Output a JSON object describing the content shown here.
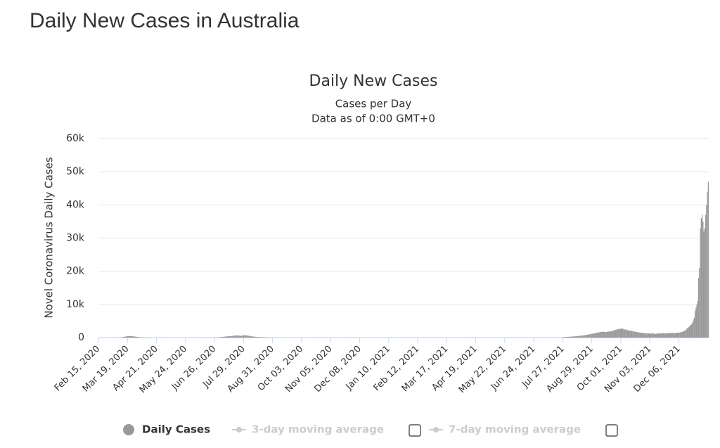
{
  "page_title": "Daily New Cases in Australia",
  "chart_data": {
    "type": "bar",
    "title": "Daily New Cases",
    "subtitle": [
      "Cases per Day",
      "Data as of 0:00 GMT+0"
    ],
    "y_label": "Novel Coronavirus Daily Cases",
    "ylim": [
      0,
      60000
    ],
    "yticks": [
      0,
      {
        "value": 10000,
        "label": "10k"
      },
      {
        "value": 20000,
        "label": "20k"
      },
      {
        "value": 30000,
        "label": "30k"
      },
      {
        "value": 40000,
        "label": "40k"
      },
      {
        "value": 50000,
        "label": "50k"
      },
      {
        "value": 60000,
        "label": "60k"
      }
    ],
    "grid": true,
    "categories": [
      "Feb 15, 2020",
      null,
      null,
      null,
      null,
      null,
      null,
      null,
      null,
      null,
      null,
      null,
      null,
      null,
      null,
      null,
      null,
      null,
      null,
      null,
      null,
      null,
      null,
      null,
      null,
      null,
      null,
      null,
      null,
      null,
      null,
      null,
      null,
      "Mar 19, 2020",
      null,
      null,
      null,
      null,
      null,
      null,
      null,
      null,
      null,
      null,
      null,
      null,
      null,
      null,
      null,
      null,
      null,
      null,
      null,
      null,
      null,
      null,
      null,
      null,
      null,
      null,
      null,
      null,
      null,
      null,
      null,
      null,
      "Apr 21, 2020",
      null,
      null,
      null,
      null,
      null,
      null,
      null,
      null,
      null,
      null,
      null,
      null,
      null,
      null,
      null,
      null,
      null,
      null,
      null,
      null,
      null,
      null,
      null,
      null,
      null,
      null,
      null,
      null,
      null,
      null,
      null,
      null,
      "May 24, 2020",
      null,
      null,
      null,
      null,
      null,
      null,
      null,
      null,
      null,
      null,
      null,
      null,
      null,
      null,
      null,
      null,
      null,
      null,
      null,
      null,
      null,
      null,
      null,
      null,
      null,
      null,
      null,
      null,
      null,
      null,
      null,
      null,
      "Jun 26, 2020",
      null,
      null,
      null,
      null,
      null,
      null,
      null,
      null,
      null,
      null,
      null,
      null,
      null,
      null,
      null,
      null,
      null,
      null,
      null,
      null,
      null,
      null,
      null,
      null,
      null,
      null,
      null,
      null,
      null,
      null,
      null,
      null,
      "Jul 29, 2020",
      null,
      null,
      null,
      null,
      null,
      null,
      null,
      null,
      null,
      null,
      null,
      null,
      null,
      null,
      null,
      null,
      null,
      null,
      null,
      null,
      null,
      null,
      null,
      null,
      null,
      null,
      null,
      null,
      null,
      null,
      null,
      null,
      "Aug 31, 2020",
      null,
      null,
      null,
      null,
      null,
      null,
      null,
      null,
      null,
      null,
      null,
      null,
      null,
      null,
      null,
      null,
      null,
      null,
      null,
      null,
      null,
      null,
      null,
      null,
      null,
      null,
      null,
      null,
      null,
      null,
      null,
      null,
      "Oct 03, 2020",
      null,
      null,
      null,
      null,
      null,
      null,
      null,
      null,
      null,
      null,
      null,
      null,
      null,
      null,
      null,
      null,
      null,
      null,
      null,
      null,
      null,
      null,
      null,
      null,
      null,
      null,
      null,
      null,
      null,
      null,
      null,
      null,
      "Nov 05, 2020",
      null,
      null,
      null,
      null,
      null,
      null,
      null,
      null,
      null,
      null,
      null,
      null,
      null,
      null,
      null,
      null,
      null,
      null,
      null,
      null,
      null,
      null,
      null,
      null,
      null,
      null,
      null,
      null,
      null,
      null,
      null,
      null,
      "Dec 08, 2020",
      null,
      null,
      null,
      null,
      null,
      null,
      null,
      null,
      null,
      null,
      null,
      null,
      null,
      null,
      null,
      null,
      null,
      null,
      null,
      null,
      null,
      null,
      null,
      null,
      null,
      null,
      null,
      null,
      null,
      null,
      null,
      null,
      "Jan 10, 2021",
      null,
      null,
      null,
      null,
      null,
      null,
      null,
      null,
      null,
      null,
      null,
      null,
      null,
      null,
      null,
      null,
      null,
      null,
      null,
      null,
      null,
      null,
      null,
      null,
      null,
      null,
      null,
      null,
      null,
      null,
      null,
      null,
      "Feb 12, 2021",
      null,
      null,
      null,
      null,
      null,
      null,
      null,
      null,
      null,
      null,
      null,
      null,
      null,
      null,
      null,
      null,
      null,
      null,
      null,
      null,
      null,
      null,
      null,
      null,
      null,
      null,
      null,
      null,
      null,
      null,
      null,
      null,
      "Mar 17, 2021",
      null,
      null,
      null,
      null,
      null,
      null,
      null,
      null,
      null,
      null,
      null,
      null,
      null,
      null,
      null,
      null,
      null,
      null,
      null,
      null,
      null,
      null,
      null,
      null,
      null,
      null,
      null,
      null,
      null,
      null,
      null,
      null,
      "Apr 19, 2021",
      null,
      null,
      null,
      null,
      null,
      null,
      null,
      null,
      null,
      null,
      null,
      null,
      null,
      null,
      null,
      null,
      null,
      null,
      null,
      null,
      null,
      null,
      null,
      null,
      null,
      null,
      null,
      null,
      null,
      null,
      null,
      null,
      "May 22, 2021",
      null,
      null,
      null,
      null,
      null,
      null,
      null,
      null,
      null,
      null,
      null,
      null,
      null,
      null,
      null,
      null,
      null,
      null,
      null,
      null,
      null,
      null,
      null,
      null,
      null,
      null,
      null,
      null,
      null,
      null,
      null,
      null,
      "Jun 24, 2021",
      null,
      null,
      null,
      null,
      null,
      null,
      null,
      null,
      null,
      null,
      null,
      null,
      null,
      null,
      null,
      null,
      null,
      null,
      null,
      null,
      null,
      null,
      null,
      null,
      null,
      null,
      null,
      null,
      null,
      null,
      null,
      null,
      "Jul 27, 2021",
      null,
      null,
      null,
      null,
      null,
      null,
      null,
      null,
      null,
      null,
      null,
      null,
      null,
      null,
      null,
      null,
      null,
      null,
      null,
      null,
      null,
      null,
      null,
      null,
      null,
      null,
      null,
      null,
      null,
      null,
      null,
      null,
      "Aug 29, 2021",
      null,
      null,
      null,
      null,
      null,
      null,
      null,
      null,
      null,
      null,
      null,
      null,
      null,
      null,
      null,
      null,
      null,
      null,
      null,
      null,
      null,
      null,
      null,
      null,
      null,
      null,
      null,
      null,
      null,
      null,
      null,
      null,
      "Oct 01, 2021",
      null,
      null,
      null,
      null,
      null,
      null,
      null,
      null,
      null,
      null,
      null,
      null,
      null,
      null,
      null,
      null,
      null,
      null,
      null,
      null,
      null,
      null,
      null,
      null,
      null,
      null,
      null,
      null,
      null,
      null,
      null,
      null,
      "Nov 03, 2021",
      null,
      null,
      null,
      null,
      null,
      null,
      null,
      null,
      null,
      null,
      null,
      null,
      null,
      null,
      null,
      null,
      null,
      null,
      null,
      null,
      null,
      null,
      null,
      null,
      null,
      null,
      null,
      null,
      null,
      null,
      null,
      null,
      "Dec 06, 2021",
      null,
      null,
      null,
      null,
      null,
      null,
      null,
      null,
      null,
      null,
      null,
      null,
      null,
      null,
      null,
      null,
      null,
      null,
      null,
      null,
      null,
      null,
      null,
      null,
      null,
      null,
      null,
      null,
      null,
      null,
      null,
      null,
      null
    ],
    "series": [
      {
        "name": "Daily Cases",
        "color": "#999999",
        "values": [
          0,
          0,
          0,
          0,
          0,
          0,
          0,
          0,
          0,
          0,
          0,
          0,
          0,
          0,
          0,
          0,
          0,
          0,
          2,
          5,
          10,
          20,
          25,
          40,
          50,
          80,
          100,
          130,
          180,
          250,
          300,
          350,
          400,
          400,
          450,
          480,
          500,
          460,
          420,
          380,
          350,
          300,
          280,
          250,
          220,
          200,
          150,
          120,
          100,
          90,
          80,
          60,
          50,
          40,
          30,
          25,
          20,
          18,
          15,
          12,
          10,
          10,
          8,
          6,
          5,
          5,
          5,
          8,
          10,
          12,
          15,
          10,
          8,
          6,
          5,
          14,
          20,
          18,
          15,
          12,
          10,
          8,
          6,
          5,
          8,
          10,
          12,
          15,
          10,
          8,
          6,
          5,
          8,
          10,
          12,
          10,
          8,
          6,
          5,
          10,
          8,
          6,
          12,
          15,
          10,
          8,
          6,
          5,
          8,
          10,
          12,
          15,
          18,
          20,
          15,
          12,
          10,
          15,
          20,
          25,
          20,
          18,
          25,
          30,
          20,
          25,
          30,
          35,
          30,
          40,
          35,
          30,
          40,
          50,
          60,
          80,
          100,
          120,
          150,
          180,
          200,
          250,
          270,
          300,
          320,
          350,
          400,
          380,
          420,
          450,
          500,
          480,
          520,
          550,
          600,
          580,
          620,
          650,
          700,
          600,
          550,
          500,
          550,
          600,
          650,
          720,
          700,
          680,
          650,
          600,
          550,
          500,
          450,
          420,
          380,
          350,
          300,
          280,
          250,
          230,
          200,
          180,
          160,
          150,
          140,
          130,
          120,
          110,
          100,
          90,
          80,
          70,
          60,
          50,
          45,
          40,
          35,
          30,
          30,
          25,
          20,
          20,
          18,
          15,
          12,
          10,
          10,
          8,
          8,
          6,
          6,
          5,
          5,
          5,
          4,
          4,
          3,
          3,
          3,
          2,
          2,
          2,
          2,
          2,
          2,
          2,
          2,
          2,
          2,
          2,
          2,
          10,
          12,
          8,
          15,
          9,
          11,
          14,
          10,
          7,
          13,
          12,
          9,
          10,
          11,
          8,
          16,
          10,
          12,
          9,
          14,
          11,
          10,
          8,
          13,
          12,
          9,
          10,
          15,
          11,
          10,
          12,
          8,
          9,
          10,
          12,
          8,
          15,
          9,
          11,
          14,
          10,
          7,
          13,
          12,
          9,
          10,
          11,
          8,
          16,
          10,
          12,
          9,
          14,
          11,
          10,
          8,
          13,
          12,
          9,
          10,
          15,
          11,
          10,
          12,
          8,
          9,
          10,
          12,
          8,
          15,
          9,
          11,
          14,
          10,
          7,
          13,
          12,
          9,
          10,
          11,
          8,
          16,
          10,
          12,
          9,
          14,
          11,
          10,
          8,
          13,
          12,
          9,
          10,
          15,
          11,
          10,
          12,
          8,
          9,
          10,
          12,
          8,
          15,
          9,
          11,
          14,
          10,
          7,
          13,
          12,
          9,
          10,
          11,
          8,
          16,
          10,
          12,
          9,
          14,
          11,
          10,
          8,
          13,
          12,
          9,
          10,
          15,
          11,
          10,
          12,
          8,
          9,
          10,
          12,
          8,
          15,
          9,
          11,
          14,
          10,
          7,
          13,
          12,
          9,
          10,
          11,
          8,
          16,
          10,
          12,
          9,
          14,
          11,
          10,
          8,
          13,
          12,
          9,
          10,
          15,
          11,
          10,
          12,
          8,
          9,
          10,
          12,
          8,
          15,
          9,
          11,
          14,
          10,
          7,
          13,
          12,
          9,
          10,
          11,
          8,
          16,
          10,
          12,
          9,
          14,
          11,
          10,
          8,
          13,
          12,
          9,
          10,
          15,
          11,
          10,
          12,
          8,
          9,
          10,
          12,
          8,
          15,
          9,
          11,
          14,
          10,
          7,
          13,
          12,
          9,
          10,
          11,
          8,
          16,
          10,
          12,
          9,
          14,
          11,
          10,
          8,
          13,
          12,
          9,
          10,
          15,
          11,
          10,
          12,
          8,
          9,
          10,
          12,
          8,
          15,
          9,
          11,
          14,
          10,
          7,
          13,
          12,
          9,
          10,
          11,
          8,
          16,
          10,
          12,
          9,
          14,
          11,
          10,
          8,
          13,
          12,
          9,
          10,
          15,
          11,
          10,
          12,
          8,
          9,
          10,
          12,
          8,
          15,
          9,
          11,
          14,
          10,
          7,
          13,
          12,
          9,
          10,
          11,
          8,
          16,
          10,
          12,
          9,
          14,
          11,
          10,
          8,
          13,
          12,
          9,
          10,
          15,
          11,
          10,
          12,
          8,
          9,
          150,
          170,
          180,
          200,
          220,
          230,
          250,
          260,
          280,
          300,
          320,
          340,
          350,
          380,
          400,
          420,
          450,
          480,
          500,
          520,
          550,
          600,
          620,
          650,
          700,
          750,
          800,
          850,
          900,
          950,
          1000,
          1050,
          1100,
          1150,
          1200,
          1250,
          1300,
          1400,
          1450,
          1500,
          1550,
          1600,
          1650,
          1700,
          1700,
          1750,
          1800,
          1700,
          1650,
          1700,
          1750,
          1800,
          1800,
          1850,
          1900,
          1950,
          2000,
          2100,
          2200,
          2300,
          2400,
          2400,
          2500,
          2600,
          2700,
          2600,
          2700,
          2800,
          2600,
          2500,
          2400,
          2500,
          2300,
          2200,
          2300,
          2100,
          2000,
          2100,
          2000,
          1900,
          1900,
          1800,
          1800,
          1700,
          1700,
          1600,
          1600,
          1500,
          1500,
          1400,
          1400,
          1400,
          1300,
          1300,
          1300,
          1200,
          1250,
          1300,
          1200,
          1200,
          1250,
          1300,
          1250,
          1200,
          1150,
          1100,
          1150,
          1200,
          1250,
          1300,
          1250,
          1200,
          1300,
          1350,
          1300,
          1250,
          1200,
          1300,
          1350,
          1400,
          1350,
          1300,
          1350,
          1400,
          1450,
          1400,
          1350,
          1300,
          1400,
          1450,
          1500,
          1450,
          1500,
          1550,
          1600,
          1700,
          1800,
          1900,
          2000,
          2200,
          2500,
          2800,
          3000,
          3200,
          3500,
          3800,
          4000,
          4500,
          5200,
          6000,
          8000,
          9000,
          10000,
          11000,
          18000,
          21000,
          33000,
          36000,
          37000,
          35000,
          32000,
          33000,
          37000,
          40000,
          44000,
          47000
        ]
      }
    ],
    "moving_averages": [
      {
        "name": "3-day moving average",
        "color": "#cccccc"
      },
      {
        "name": "7-day moving average",
        "color": "#cccccc"
      }
    ]
  }
}
